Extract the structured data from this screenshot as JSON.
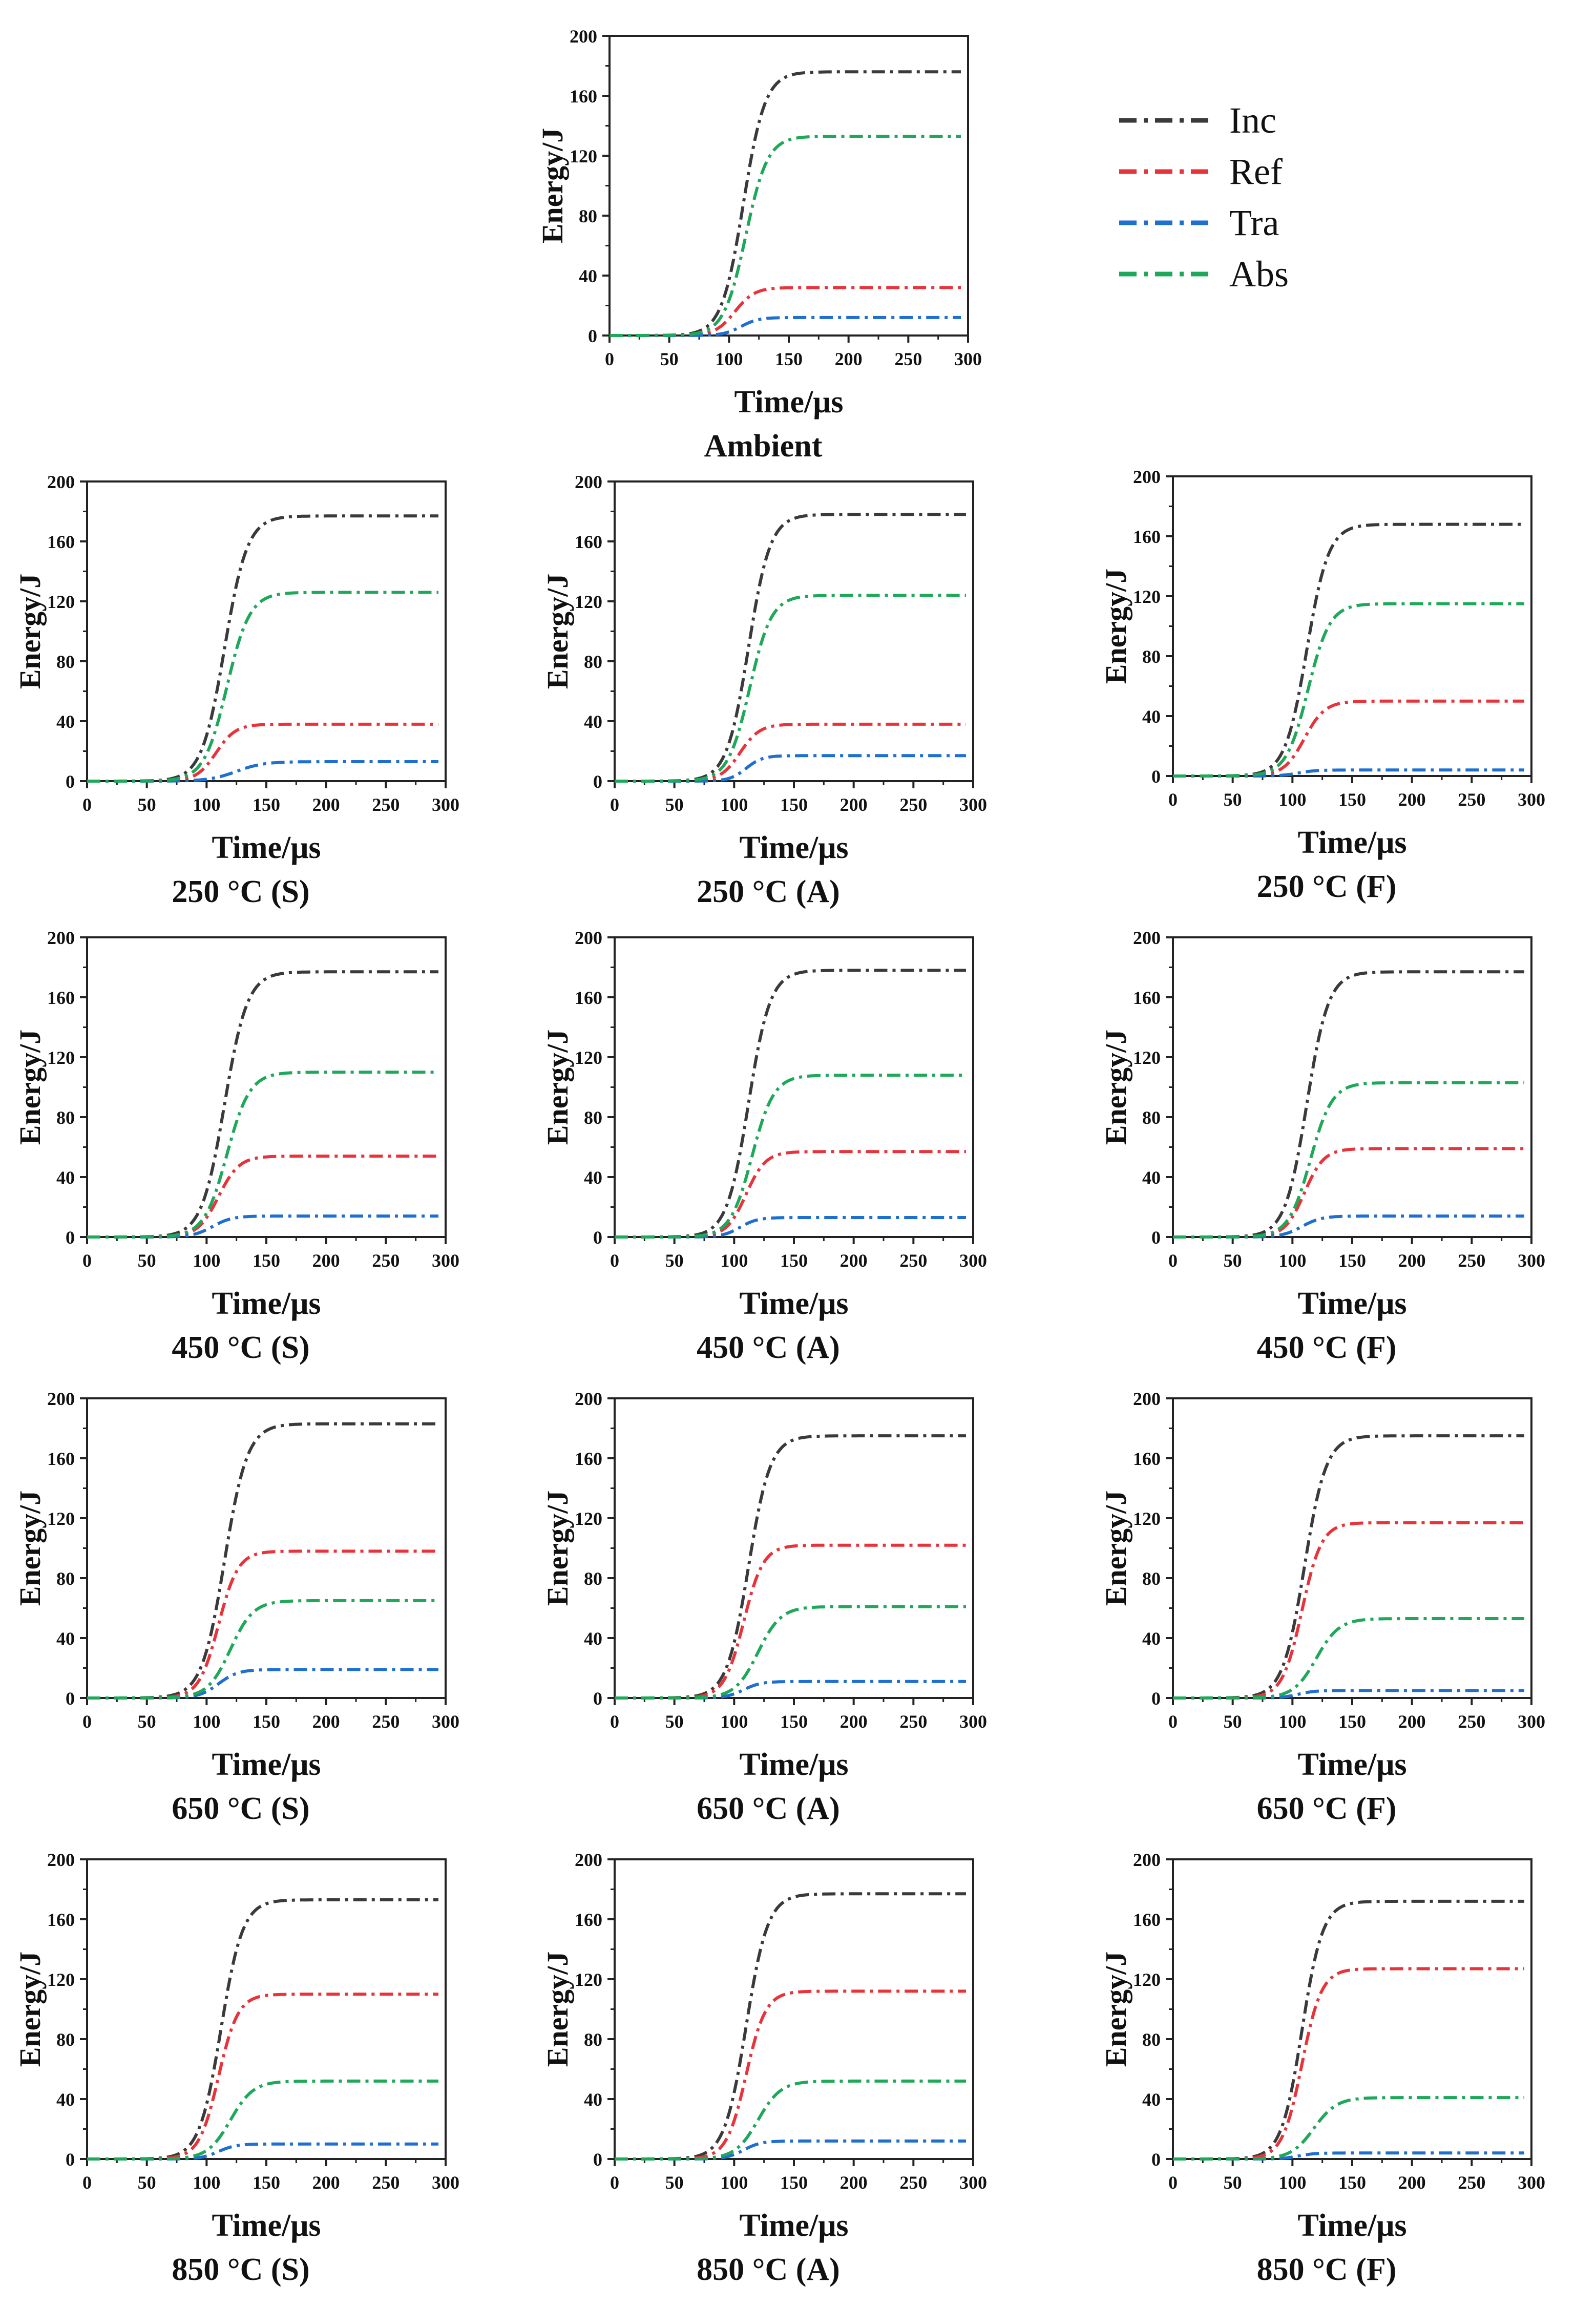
{
  "chart_data": {
    "type": "line",
    "shared_axes": {
      "xlabel": "Time/μs",
      "ylabel": "Energy/J",
      "xlim": [
        0,
        300
      ],
      "ylim": [
        0,
        200
      ],
      "xticks": [
        "0",
        "50",
        "100",
        "150",
        "200",
        "250",
        "300"
      ],
      "yticks": [
        "0",
        "40",
        "80",
        "120",
        "160",
        "200"
      ],
      "grid": false
    },
    "legend": {
      "placement": "right of top panel",
      "entries": [
        {
          "name": "Inc",
          "color": "#3a3a3a"
        },
        {
          "name": "Ref",
          "color": "#e8333a"
        },
        {
          "name": "Tra",
          "color": "#1f6fd0"
        },
        {
          "name": "Abs",
          "color": "#1ea85a"
        }
      ]
    },
    "panels": [
      {
        "id": "ambient",
        "caption": "Ambient",
        "series": [
          {
            "name": "Inc",
            "final": 176,
            "mid": 112,
            "width": 20
          },
          {
            "name": "Ref",
            "final": 32,
            "mid": 105,
            "width": 18
          },
          {
            "name": "Tra",
            "final": 12,
            "mid": 110,
            "width": 16
          },
          {
            "name": "Abs",
            "final": 133,
            "mid": 114,
            "width": 20
          }
        ]
      },
      {
        "id": "250S",
        "caption": "250 °C (S)",
        "series": [
          {
            "name": "Inc",
            "final": 177,
            "mid": 115,
            "width": 21
          },
          {
            "name": "Ref",
            "final": 38,
            "mid": 108,
            "width": 18
          },
          {
            "name": "Tra",
            "final": 13,
            "mid": 125,
            "width": 25
          },
          {
            "name": "Abs",
            "final": 126,
            "mid": 117,
            "width": 21
          }
        ]
      },
      {
        "id": "250A",
        "caption": "250 °C (A)",
        "series": [
          {
            "name": "Inc",
            "final": 178,
            "mid": 112,
            "width": 20
          },
          {
            "name": "Ref",
            "final": 38,
            "mid": 105,
            "width": 18
          },
          {
            "name": "Tra",
            "final": 17,
            "mid": 110,
            "width": 15
          },
          {
            "name": "Abs",
            "final": 124,
            "mid": 113,
            "width": 20
          }
        ]
      },
      {
        "id": "250F",
        "caption": "250 °C (F)",
        "series": [
          {
            "name": "Inc",
            "final": 168,
            "mid": 112,
            "width": 20
          },
          {
            "name": "Ref",
            "final": 50,
            "mid": 110,
            "width": 19
          },
          {
            "name": "Tra",
            "final": 4,
            "mid": 105,
            "width": 16
          },
          {
            "name": "Abs",
            "final": 115,
            "mid": 113,
            "width": 20
          }
        ]
      },
      {
        "id": "450S",
        "caption": "450 °C (S)",
        "series": [
          {
            "name": "Inc",
            "final": 177,
            "mid": 115,
            "width": 21
          },
          {
            "name": "Ref",
            "final": 54,
            "mid": 110,
            "width": 19
          },
          {
            "name": "Tra",
            "final": 14,
            "mid": 105,
            "width": 18
          },
          {
            "name": "Abs",
            "final": 110,
            "mid": 117,
            "width": 21
          }
        ]
      },
      {
        "id": "450A",
        "caption": "450 °C (A)",
        "series": [
          {
            "name": "Inc",
            "final": 178,
            "mid": 112,
            "width": 20
          },
          {
            "name": "Ref",
            "final": 57,
            "mid": 110,
            "width": 18
          },
          {
            "name": "Tra",
            "final": 13,
            "mid": 105,
            "width": 16
          },
          {
            "name": "Abs",
            "final": 108,
            "mid": 115,
            "width": 20
          }
        ]
      },
      {
        "id": "450F",
        "caption": "450 °C (F)",
        "series": [
          {
            "name": "Inc",
            "final": 177,
            "mid": 112,
            "width": 20
          },
          {
            "name": "Ref",
            "final": 59,
            "mid": 110,
            "width": 18
          },
          {
            "name": "Tra",
            "final": 14,
            "mid": 108,
            "width": 18
          },
          {
            "name": "Abs",
            "final": 103,
            "mid": 115,
            "width": 20
          }
        ]
      },
      {
        "id": "650S",
        "caption": "650 °C (S)",
        "series": [
          {
            "name": "Inc",
            "final": 183,
            "mid": 115,
            "width": 21
          },
          {
            "name": "Ref",
            "final": 98,
            "mid": 110,
            "width": 18
          },
          {
            "name": "Tra",
            "final": 19,
            "mid": 110,
            "width": 18
          },
          {
            "name": "Abs",
            "final": 65,
            "mid": 120,
            "width": 21
          }
        ]
      },
      {
        "id": "650A",
        "caption": "650 °C (A)",
        "series": [
          {
            "name": "Inc",
            "final": 175,
            "mid": 112,
            "width": 20
          },
          {
            "name": "Ref",
            "final": 102,
            "mid": 108,
            "width": 18
          },
          {
            "name": "Tra",
            "final": 11,
            "mid": 108,
            "width": 16
          },
          {
            "name": "Abs",
            "final": 61,
            "mid": 120,
            "width": 21
          }
        ]
      },
      {
        "id": "650F",
        "caption": "650 °C (F)",
        "series": [
          {
            "name": "Inc",
            "final": 175,
            "mid": 110,
            "width": 20
          },
          {
            "name": "Ref",
            "final": 117,
            "mid": 108,
            "width": 18
          },
          {
            "name": "Tra",
            "final": 5,
            "mid": 105,
            "width": 15
          },
          {
            "name": "Abs",
            "final": 53,
            "mid": 120,
            "width": 21
          }
        ]
      },
      {
        "id": "850S",
        "caption": "850 °C (S)",
        "series": [
          {
            "name": "Inc",
            "final": 173,
            "mid": 112,
            "width": 20
          },
          {
            "name": "Ref",
            "final": 110,
            "mid": 110,
            "width": 18
          },
          {
            "name": "Tra",
            "final": 10,
            "mid": 110,
            "width": 16
          },
          {
            "name": "Abs",
            "final": 52,
            "mid": 120,
            "width": 21
          }
        ]
      },
      {
        "id": "850A",
        "caption": "850 °C (A)",
        "series": [
          {
            "name": "Inc",
            "final": 177,
            "mid": 110,
            "width": 20
          },
          {
            "name": "Ref",
            "final": 112,
            "mid": 110,
            "width": 18
          },
          {
            "name": "Tra",
            "final": 12,
            "mid": 108,
            "width": 16
          },
          {
            "name": "Abs",
            "final": 52,
            "mid": 120,
            "width": 21
          }
        ]
      },
      {
        "id": "850F",
        "caption": "850 °C (F)",
        "series": [
          {
            "name": "Inc",
            "final": 172,
            "mid": 108,
            "width": 19
          },
          {
            "name": "Ref",
            "final": 127,
            "mid": 108,
            "width": 18
          },
          {
            "name": "Tra",
            "final": 4,
            "mid": 105,
            "width": 15
          },
          {
            "name": "Abs",
            "final": 41,
            "mid": 118,
            "width": 21
          }
        ]
      }
    ]
  }
}
